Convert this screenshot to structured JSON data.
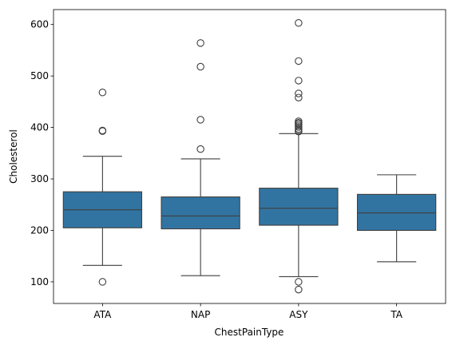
{
  "chart_data": {
    "type": "box",
    "title": "",
    "xlabel": "ChestPainType",
    "ylabel": "Cholesterol",
    "ylim": [
      58,
      629
    ],
    "yticks": [
      100,
      200,
      300,
      400,
      500,
      600
    ],
    "grid": false,
    "legend": "none",
    "box_color": "#3274a1",
    "line_color": "#3f3f3f",
    "categories": [
      "ATA",
      "NAP",
      "ASY",
      "TA"
    ],
    "boxes": [
      {
        "category": "ATA",
        "whisker_low": 132,
        "q1": 205,
        "median": 240,
        "q3": 275,
        "whisker_high": 344,
        "outliers": [
          100,
          393,
          394,
          468
        ]
      },
      {
        "category": "NAP",
        "whisker_low": 112,
        "q1": 203,
        "median": 228,
        "q3": 265,
        "whisker_high": 339,
        "outliers": [
          358,
          415,
          518,
          564
        ]
      },
      {
        "category": "ASY",
        "whisker_low": 110,
        "q1": 210,
        "median": 243,
        "q3": 282,
        "whisker_high": 388,
        "outliers": [
          85,
          100,
          392,
          394,
          397,
          401,
          404,
          407,
          409,
          412,
          458,
          466,
          491,
          529,
          603
        ]
      },
      {
        "category": "TA",
        "whisker_low": 139,
        "q1": 200,
        "median": 234,
        "q3": 270,
        "whisker_high": 308,
        "outliers": []
      }
    ]
  }
}
